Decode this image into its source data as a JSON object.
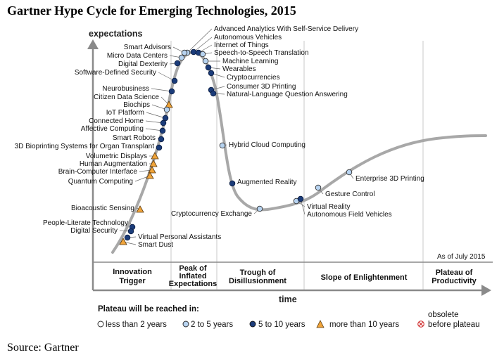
{
  "title": "Gartner Hype Cycle for Emerging Technologies, 2015",
  "source": "Source: Gartner",
  "chart_data": {
    "type": "scatter",
    "ylabel": "expectations",
    "xlabel": "time",
    "as_of": "As of July 2015",
    "phases": [
      {
        "lines": [
          "Innovation",
          "Trigger"
        ]
      },
      {
        "lines": [
          "Peak of",
          "Inflated",
          "Expectations"
        ]
      },
      {
        "lines": [
          "Trough of",
          "Disillusionment"
        ]
      },
      {
        "lines": [
          "Slope of Enlightenment"
        ]
      },
      {
        "lines": [
          "Plateau of",
          "Productivity"
        ]
      }
    ],
    "legend": {
      "title": "Plateau will be reached in:",
      "items": [
        {
          "key": "lt2",
          "label": "less than 2 years"
        },
        {
          "key": "2to5",
          "label": "2 to 5 years"
        },
        {
          "key": "5to10",
          "label": "5 to 10 years"
        },
        {
          "key": "gt10",
          "label": "more than 10 years"
        },
        {
          "key": "obs",
          "lines": [
            "obsolete",
            "before plateau"
          ]
        }
      ]
    },
    "colors": {
      "curve": "#a8a8a8",
      "lt2": "#ffffff",
      "2to5": "#b7d3f0",
      "5to10": "#1b3c7a",
      "gt10": "#f0a43a",
      "obsolete": "#d03030"
    },
    "technologies": [
      {
        "name": "Advanced Analytics With Self-Service Delivery",
        "cat": "2to5"
      },
      {
        "name": "Autonomous Vehicles",
        "cat": "5to10"
      },
      {
        "name": "Internet of Things",
        "cat": "5to10"
      },
      {
        "name": "Speech-to-Speech Translation",
        "cat": "2to5"
      },
      {
        "name": "Machine Learning",
        "cat": "2to5"
      },
      {
        "name": "Wearables",
        "cat": "5to10"
      },
      {
        "name": "Cryptocurrencies",
        "cat": "5to10"
      },
      {
        "name": "Consumer 3D Printing",
        "cat": "5to10"
      },
      {
        "name": "Natural-Language Question Answering",
        "cat": "5to10"
      },
      {
        "name": "Smart Advisors",
        "cat": "2to5"
      },
      {
        "name": "Micro Data Centers",
        "cat": "2to5"
      },
      {
        "name": "Digital Dexterity",
        "cat": "5to10"
      },
      {
        "name": "Software-Defined Security",
        "cat": "5to10"
      },
      {
        "name": "Neurobusiness",
        "cat": "5to10"
      },
      {
        "name": "Citizen Data Science",
        "cat": "gt10"
      },
      {
        "name": "Biochips",
        "cat": "2to5"
      },
      {
        "name": "IoT Platform",
        "cat": "5to10"
      },
      {
        "name": "Connected Home",
        "cat": "5to10"
      },
      {
        "name": "Affective Computing",
        "cat": "5to10"
      },
      {
        "name": "Smart Robots",
        "cat": "5to10"
      },
      {
        "name": "3D Bioprinting Systems for Organ Transplant",
        "cat": "5to10"
      },
      {
        "name": "Volumetric Displays",
        "cat": "gt10"
      },
      {
        "name": "Human Augmentation",
        "cat": "gt10"
      },
      {
        "name": "Brain-Computer Interface",
        "cat": "gt10"
      },
      {
        "name": "Quantum Computing",
        "cat": "gt10"
      },
      {
        "name": "Bioacoustic Sensing",
        "cat": "gt10"
      },
      {
        "name": "People-Literate Technology",
        "cat": "5to10"
      },
      {
        "name": "Digital Security",
        "cat": "5to10"
      },
      {
        "name": "Virtual Personal Assistants",
        "cat": "5to10"
      },
      {
        "name": "Smart Dust",
        "cat": "gt10"
      },
      {
        "name": "Hybrid Cloud Computing",
        "cat": "2to5"
      },
      {
        "name": "Augmented Reality",
        "cat": "5to10"
      },
      {
        "name": "Cryptocurrency Exchange",
        "cat": "2to5"
      },
      {
        "name": "Virtual Reality",
        "cat": "2to5"
      },
      {
        "name": "Autonomous Field Vehicles",
        "cat": "5to10"
      },
      {
        "name": "Gesture Control",
        "cat": "2to5"
      },
      {
        "name": "Enterprise 3D Printing",
        "cat": "2to5"
      }
    ]
  }
}
